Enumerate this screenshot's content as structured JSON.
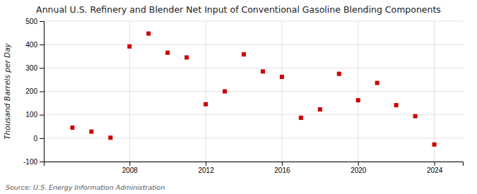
{
  "chart_data": {
    "type": "scatter",
    "title": "Annual U.S. Refinery and Blender Net Input of Conventional Gasoline Blending Components",
    "y_label": "Thousand Barrels per Day",
    "annotations": [
      "Source: U.S. Energy Information Administration"
    ],
    "x": [
      2005,
      2006,
      2007,
      2008,
      2009,
      2010,
      2011,
      2012,
      2013,
      2014,
      2015,
      2016,
      2017,
      2018,
      2019,
      2020,
      2021,
      2022,
      2023,
      2024
    ],
    "values": [
      45,
      28,
      2,
      392,
      447,
      365,
      345,
      145,
      200,
      358,
      285,
      262,
      87,
      123,
      275,
      162,
      236,
      141,
      94,
      -27
    ],
    "color": "#cc0000",
    "marker": "square",
    "xlim": [
      2003.5,
      2025.5
    ],
    "xticks": [
      2008,
      2012,
      2016,
      2020,
      2024
    ],
    "ylim": [
      -100,
      500
    ],
    "yticks": [
      -100,
      0,
      100,
      200,
      300,
      400,
      500
    ],
    "grid": true
  }
}
